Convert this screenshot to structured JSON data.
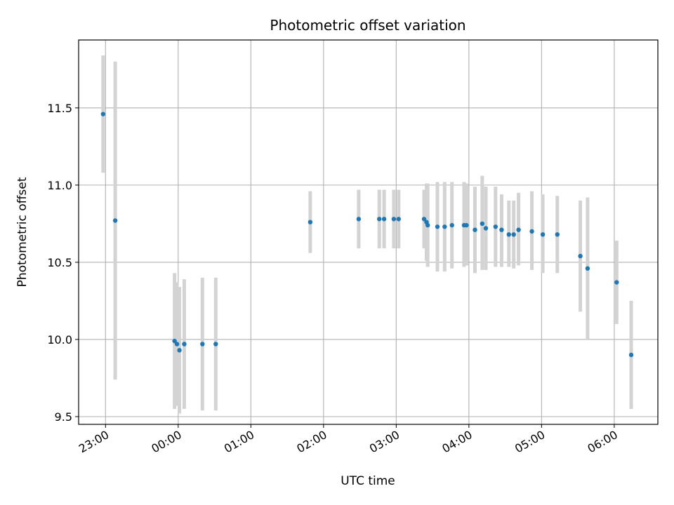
{
  "chart_data": {
    "type": "scatter",
    "title": "Photometric offset variation",
    "xlabel": "UTC time",
    "ylabel": "Photometric offset",
    "x_ticks": [
      {
        "h": 23,
        "label": "23:00"
      },
      {
        "h": 24,
        "label": "00:00"
      },
      {
        "h": 25,
        "label": "01:00"
      },
      {
        "h": 26,
        "label": "02:00"
      },
      {
        "h": 27,
        "label": "03:00"
      },
      {
        "h": 28,
        "label": "04:00"
      },
      {
        "h": 29,
        "label": "05:00"
      },
      {
        "h": 30,
        "label": "06:00"
      }
    ],
    "y_ticks": [
      {
        "v": 9.5,
        "label": "9.5"
      },
      {
        "v": 10.0,
        "label": "10.0"
      },
      {
        "v": 10.5,
        "label": "10.5"
      },
      {
        "v": 11.0,
        "label": "11.0"
      },
      {
        "v": 11.5,
        "label": "11.5"
      }
    ],
    "xlim": [
      22.63,
      30.6
    ],
    "ylim": [
      9.45,
      11.94
    ],
    "grid": true,
    "point_color": "#1f77b4",
    "errorbar_color": "#d3d3d3",
    "points": [
      {
        "t": "22:58",
        "y": 11.46,
        "lo": 11.08,
        "hi": 11.84
      },
      {
        "t": "23:08",
        "y": 10.77,
        "lo": 9.74,
        "hi": 11.8
      },
      {
        "t": "23:57",
        "y": 9.99,
        "lo": 9.55,
        "hi": 10.43
      },
      {
        "t": "23:59",
        "y": 9.97,
        "lo": 9.57,
        "hi": 10.37
      },
      {
        "t": "00:01",
        "y": 9.93,
        "lo": 9.52,
        "hi": 10.34
      },
      {
        "t": "00:05",
        "y": 9.97,
        "lo": 9.55,
        "hi": 10.39
      },
      {
        "t": "00:20",
        "y": 9.97,
        "lo": 9.54,
        "hi": 10.4
      },
      {
        "t": "00:31",
        "y": 9.97,
        "lo": 9.54,
        "hi": 10.4
      },
      {
        "t": "01:49",
        "y": 10.76,
        "lo": 10.56,
        "hi": 10.96
      },
      {
        "t": "02:29",
        "y": 10.78,
        "lo": 10.59,
        "hi": 10.97
      },
      {
        "t": "02:46",
        "y": 10.78,
        "lo": 10.59,
        "hi": 10.97
      },
      {
        "t": "02:50",
        "y": 10.78,
        "lo": 10.59,
        "hi": 10.97
      },
      {
        "t": "02:58",
        "y": 10.78,
        "lo": 10.59,
        "hi": 10.97
      },
      {
        "t": "03:02",
        "y": 10.78,
        "lo": 10.59,
        "hi": 10.97
      },
      {
        "t": "03:23",
        "y": 10.78,
        "lo": 10.59,
        "hi": 10.97
      },
      {
        "t": "03:25",
        "y": 10.76,
        "lo": 10.51,
        "hi": 11.01
      },
      {
        "t": "03:26",
        "y": 10.74,
        "lo": 10.47,
        "hi": 11.01
      },
      {
        "t": "03:34",
        "y": 10.73,
        "lo": 10.44,
        "hi": 11.02
      },
      {
        "t": "03:40",
        "y": 10.73,
        "lo": 10.44,
        "hi": 11.02
      },
      {
        "t": "03:46",
        "y": 10.74,
        "lo": 10.46,
        "hi": 11.02
      },
      {
        "t": "03:56",
        "y": 10.74,
        "lo": 10.47,
        "hi": 11.02
      },
      {
        "t": "03:58",
        "y": 10.74,
        "lo": 10.48,
        "hi": 11.01
      },
      {
        "t": "04:05",
        "y": 10.71,
        "lo": 10.43,
        "hi": 10.99
      },
      {
        "t": "04:11",
        "y": 10.75,
        "lo": 10.45,
        "hi": 11.06
      },
      {
        "t": "04:14",
        "y": 10.72,
        "lo": 10.45,
        "hi": 10.99
      },
      {
        "t": "04:22",
        "y": 10.73,
        "lo": 10.47,
        "hi": 10.99
      },
      {
        "t": "04:27",
        "y": 10.71,
        "lo": 10.47,
        "hi": 10.94
      },
      {
        "t": "04:33",
        "y": 10.68,
        "lo": 10.47,
        "hi": 10.9
      },
      {
        "t": "04:37",
        "y": 10.68,
        "lo": 10.46,
        "hi": 10.9
      },
      {
        "t": "04:41",
        "y": 10.71,
        "lo": 10.48,
        "hi": 10.95
      },
      {
        "t": "04:52",
        "y": 10.7,
        "lo": 10.45,
        "hi": 10.96
      },
      {
        "t": "05:01",
        "y": 10.68,
        "lo": 10.43,
        "hi": 10.94
      },
      {
        "t": "05:13",
        "y": 10.68,
        "lo": 10.43,
        "hi": 10.93
      },
      {
        "t": "05:32",
        "y": 10.54,
        "lo": 10.18,
        "hi": 10.9
      },
      {
        "t": "05:38",
        "y": 10.46,
        "lo": 10.0,
        "hi": 10.92
      },
      {
        "t": "06:02",
        "y": 10.37,
        "lo": 10.1,
        "hi": 10.64
      },
      {
        "t": "06:14",
        "y": 9.9,
        "lo": 9.55,
        "hi": 10.25
      }
    ]
  }
}
